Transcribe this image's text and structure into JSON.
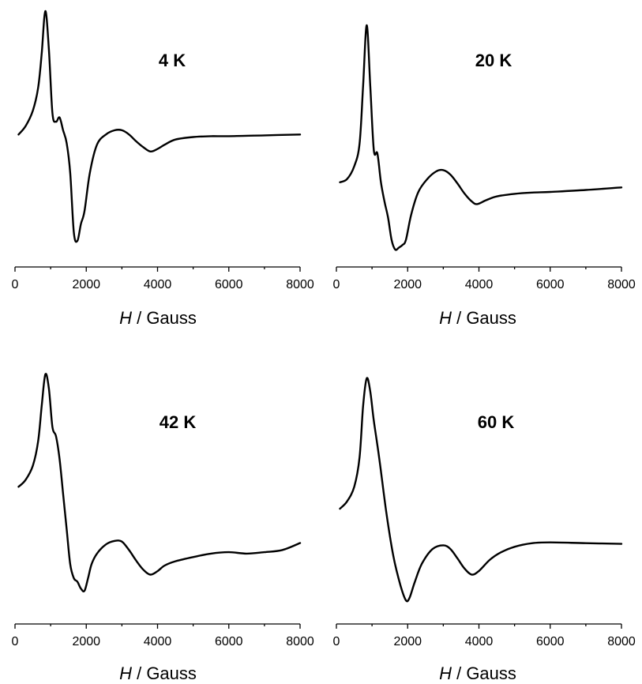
{
  "chart_data": [
    {
      "type": "line",
      "title": "4 K",
      "xlabel_italic": "H",
      "xlabel_rest": " / Gauss",
      "xlim": [
        0,
        8000
      ],
      "xticks": [
        0,
        2000,
        4000,
        6000,
        8000
      ],
      "y_axis_shown": false,
      "grid": false,
      "series": [
        {
          "x": [
            100,
            300,
            500,
            650,
            750,
            850,
            950,
            1050,
            1150,
            1250,
            1350,
            1450,
            1550,
            1650,
            1750,
            1850,
            1950,
            2100,
            2300,
            2550,
            2800,
            3000,
            3200,
            3400,
            3600,
            3800,
            4000,
            4200,
            4500,
            5000,
            5500,
            6000,
            7000,
            8000
          ],
          "y": [
            0.0,
            0.1,
            0.28,
            0.55,
            0.95,
            1.45,
            1.0,
            0.25,
            0.15,
            0.2,
            0.05,
            -0.1,
            -0.45,
            -1.15,
            -1.25,
            -1.05,
            -0.9,
            -0.45,
            -0.12,
            0.0,
            0.05,
            0.05,
            0.0,
            -0.08,
            -0.15,
            -0.2,
            -0.17,
            -0.12,
            -0.06,
            -0.03,
            -0.02,
            -0.02,
            -0.01,
            0.0
          ]
        }
      ]
    },
    {
      "type": "line",
      "title": "20 K",
      "xlabel_italic": "H",
      "xlabel_rest": " / Gauss",
      "xlim": [
        0,
        8000
      ],
      "xticks": [
        0,
        2000,
        4000,
        6000,
        8000
      ],
      "y_axis_shown": false,
      "grid": false,
      "series": [
        {
          "x": [
            100,
            300,
            500,
            650,
            750,
            850,
            950,
            1050,
            1150,
            1250,
            1350,
            1450,
            1550,
            1650,
            1750,
            1850,
            1950,
            2100,
            2300,
            2550,
            2800,
            3000,
            3200,
            3400,
            3600,
            3800,
            3950,
            4200,
            4500,
            5000,
            5500,
            6000,
            7000,
            8000
          ],
          "y": [
            0.0,
            0.05,
            0.25,
            0.6,
            1.5,
            2.45,
            1.5,
            0.5,
            0.45,
            0.0,
            -0.3,
            -0.55,
            -0.9,
            -1.05,
            -1.02,
            -0.98,
            -0.9,
            -0.5,
            -0.15,
            0.05,
            0.17,
            0.19,
            0.12,
            -0.02,
            -0.18,
            -0.3,
            -0.34,
            -0.28,
            -0.22,
            -0.18,
            -0.16,
            -0.15,
            -0.12,
            -0.08
          ]
        }
      ]
    },
    {
      "type": "line",
      "title": "42 K",
      "xlabel_italic": "H",
      "xlabel_rest": " / Gauss",
      "xlim": [
        0,
        8000
      ],
      "xticks": [
        0,
        2000,
        4000,
        6000,
        8000
      ],
      "y_axis_shown": false,
      "grid": false,
      "series": [
        {
          "x": [
            100,
            300,
            500,
            650,
            750,
            850,
            950,
            1050,
            1150,
            1250,
            1350,
            1450,
            1550,
            1650,
            1750,
            1850,
            1950,
            2050,
            2150,
            2300,
            2550,
            2800,
            3000,
            3200,
            3400,
            3600,
            3800,
            4000,
            4200,
            4500,
            5000,
            5500,
            6000,
            6500,
            7000,
            7500,
            8000
          ],
          "y": [
            0.0,
            0.1,
            0.3,
            0.65,
            1.15,
            1.6,
            1.4,
            0.85,
            0.72,
            0.4,
            -0.1,
            -0.6,
            -1.1,
            -1.3,
            -1.35,
            -1.45,
            -1.48,
            -1.3,
            -1.1,
            -0.95,
            -0.82,
            -0.77,
            -0.78,
            -0.9,
            -1.05,
            -1.18,
            -1.25,
            -1.2,
            -1.12,
            -1.06,
            -1.0,
            -0.95,
            -0.93,
            -0.95,
            -0.93,
            -0.9,
            -0.8
          ]
        }
      ]
    },
    {
      "type": "line",
      "title": "60 K",
      "xlabel_italic": "H",
      "xlabel_rest": " / Gauss",
      "xlim": [
        0,
        8000
      ],
      "xticks": [
        0,
        2000,
        4000,
        6000,
        8000
      ],
      "y_axis_shown": false,
      "grid": false,
      "series": [
        {
          "x": [
            100,
            300,
            500,
            650,
            750,
            850,
            950,
            1050,
            1200,
            1400,
            1600,
            1800,
            1950,
            2050,
            2200,
            2400,
            2700,
            3000,
            3200,
            3400,
            3600,
            3800,
            4000,
            4300,
            4600,
            5000,
            5500,
            6000,
            7000,
            8000
          ],
          "y": [
            0.0,
            0.1,
            0.3,
            0.7,
            1.4,
            1.78,
            1.6,
            1.2,
            0.7,
            -0.05,
            -0.65,
            -1.05,
            -1.25,
            -1.22,
            -1.0,
            -0.75,
            -0.55,
            -0.5,
            -0.55,
            -0.68,
            -0.82,
            -0.9,
            -0.85,
            -0.7,
            -0.6,
            -0.52,
            -0.47,
            -0.46,
            -0.47,
            -0.48
          ]
        }
      ]
    }
  ]
}
